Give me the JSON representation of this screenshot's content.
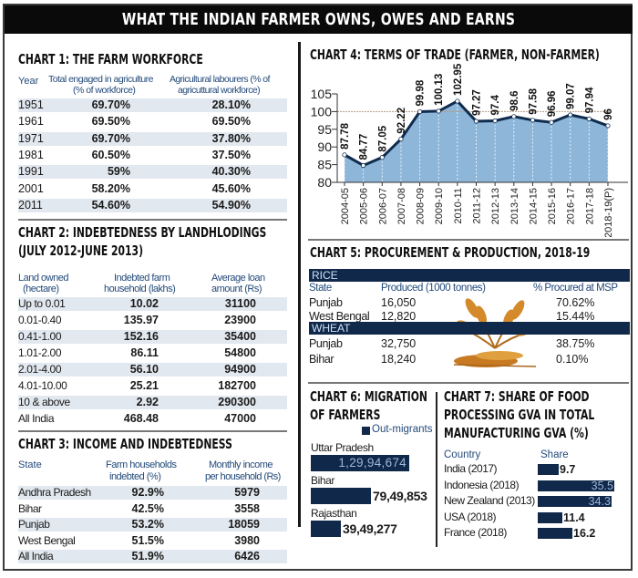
{
  "title": "WHAT THE INDIAN FARMER OWNS, OWES AND EARNS",
  "chart1": {
    "title": "CHART 1: THE FARM WORKFORCE",
    "columns": [
      "Year",
      "Total engaged in agriculture (% of workforce)",
      "Agricultural labourers (% of agricuttural workforce)"
    ],
    "col_lines": {
      "c2a": "Total engaged in agriculture",
      "c2b": "(% of workforce)",
      "c3a": "Agricultural labourers (% of",
      "c3b": "agricuttural workforce)"
    },
    "rows": [
      {
        "year": "1951",
        "total": "69.70%",
        "labourers": "28.10%"
      },
      {
        "year": "1961",
        "total": "69.50%",
        "labourers": "69.50%"
      },
      {
        "year": "1971",
        "total": "69.70%",
        "labourers": "37.80%"
      },
      {
        "year": "1981",
        "total": "60.50%",
        "labourers": "37.50%"
      },
      {
        "year": "1991",
        "total": "59%",
        "labourers": "40.30%"
      },
      {
        "year": "2001",
        "total": "58.20%",
        "labourers": "45.60%"
      },
      {
        "year": "2011",
        "total": "54.60%",
        "labourers": "54.90%"
      }
    ]
  },
  "chart2": {
    "title_line1": "CHART 2: INDEBTEDNESS BY LANDHLODINGS",
    "title_line2": "(JULY 2012-JUNE 2013)",
    "col_lines": {
      "c1a": "Land owned",
      "c1b": "(hectare)",
      "c2a": "Indebted farm",
      "c2b": "household (lakhs)",
      "c3a": "Average loan",
      "c3b": "amount (Rs)"
    },
    "rows": [
      {
        "land": "Up to 0.01",
        "households": "10.02",
        "loan": "31100"
      },
      {
        "land": "0.01-0.40",
        "households": "135.97",
        "loan": "23900"
      },
      {
        "land": "0.41-1.00",
        "households": "152.16",
        "loan": "35400"
      },
      {
        "land": "1.01-2.00",
        "households": "86.11",
        "loan": "54800"
      },
      {
        "land": "2.01-4.00",
        "households": "56.10",
        "loan": "94900"
      },
      {
        "land": "4.01-10.00",
        "households": "25.21",
        "loan": "182700"
      },
      {
        "land": "10 & above",
        "households": "2.92",
        "loan": "290300"
      },
      {
        "land": "All India",
        "households": "468.48",
        "loan": "47000"
      }
    ]
  },
  "chart3": {
    "title": "CHART 3: INCOME AND INDEBTEDNESS",
    "col_lines": {
      "c1": "State",
      "c2a": "Farm households",
      "c2b": "indebted (%)",
      "c3a": "Monthly income",
      "c3b": "per household (Rs)"
    },
    "rows": [
      {
        "state": "Andhra Pradesh",
        "indebted": "92.9%",
        "income": "5979"
      },
      {
        "state": "Bihar",
        "indebted": "42.5%",
        "income": "3558"
      },
      {
        "state": "Punjab",
        "indebted": "53.2%",
        "income": "18059"
      },
      {
        "state": "West Bengal",
        "indebted": "51.5%",
        "income": "3980"
      },
      {
        "state": "All India",
        "indebted": "51.9%",
        "income": "6426"
      }
    ]
  },
  "chart5": {
    "title": "CHART 5: PROCUREMENT & PRODUCTION, 2018-19",
    "rice_label": "RICE",
    "wheat_label": "WHEAT",
    "col_state": "State",
    "col_produced": "Produced (1000 tonnes)",
    "col_procured": "% Procured at MSP",
    "rice": [
      {
        "state": "Punjab",
        "produced": "16,050",
        "procured": "70.62%"
      },
      {
        "state": "West Bengal",
        "produced": "12,820",
        "procured": "15.44%"
      }
    ],
    "wheat": [
      {
        "state": "Punjab",
        "produced": "32,750",
        "procured": "38.75%"
      },
      {
        "state": "Bihar",
        "produced": "18,240",
        "procured": "0.10%"
      }
    ]
  },
  "colors": {
    "navy": "#10284a",
    "area": "#8db6d8",
    "line": "#0f2b4d",
    "title_bg": "#0a0a0a",
    "row_alt": "#e2e8ef"
  },
  "chart_data": [
    {
      "type": "area",
      "title": "CHART 4: TERMS OF TRADE (FARMER, NON-FARMER)",
      "categories": [
        "2004-05",
        "2005-06",
        "2006-07",
        "2007-08",
        "2008-09",
        "2009-10",
        "2010-11",
        "2011-12",
        "2012-13",
        "2013-14",
        "2014-15",
        "2015-16",
        "2016-17",
        "2017-18",
        "2018-19(P)"
      ],
      "values": [
        87.78,
        84.77,
        87.05,
        92.22,
        99.98,
        100.13,
        102.95,
        97.27,
        97.4,
        98.6,
        97.58,
        96.96,
        99.07,
        97.94,
        96
      ],
      "labels": [
        "87.78",
        "84.77",
        "87.05",
        "92.22",
        "99.98",
        "100.13",
        "102.95",
        "97.27",
        "97.4",
        "98.6",
        "97.58",
        "96.96",
        "99.07",
        "97.94",
        "96"
      ],
      "ylim": [
        80,
        105
      ],
      "yticks": [
        "80",
        "85",
        "90",
        "95",
        "100",
        "105"
      ],
      "reference_line": 100,
      "xlabel": "",
      "ylabel": ""
    },
    {
      "type": "bar",
      "title": "CHART 6: MIGRATION OF FARMERS",
      "title_line1": "CHART 6: MIGRATION",
      "title_line2": "OF FARMERS",
      "legend": "Out-migrants",
      "categories": [
        "Uttar Pradesh",
        "Bihar",
        "Rajasthan"
      ],
      "values": [
        12994674,
        7949853,
        3949277
      ],
      "labels": [
        "1,29,94,674",
        "79,49,853",
        "39,49,277"
      ]
    },
    {
      "type": "bar",
      "title": "CHART 7: SHARE OF FOOD PROCESSING GVA IN TOTAL MANUFACTURING GVA (%)",
      "title_line1": "CHART 7: SHARE OF FOOD",
      "title_line2": "PROCESSING GVA IN TOTAL",
      "title_line3": "MANUFACTURING GVA (%)",
      "col_country": "Country",
      "col_share": "Share",
      "categories": [
        "India (2017)",
        "Indonesia (2018)",
        "New Zealand (2013)",
        "USA (2018)",
        "France (2018)"
      ],
      "values": [
        9.7,
        35.5,
        34.3,
        11.4,
        16.2
      ],
      "labels": [
        "9.7",
        "35.5",
        "34.3",
        "11.4",
        "16.2"
      ]
    }
  ]
}
